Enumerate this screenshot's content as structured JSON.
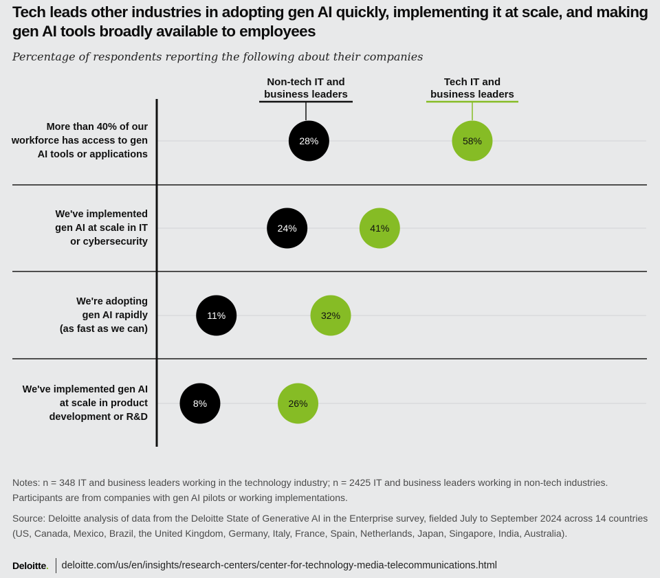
{
  "title": "Tech leads other industries in adopting gen AI quickly, implementing it at scale, and making gen AI tools broadly available to employees",
  "subtitle": "Percentage of respondents reporting the following about their companies",
  "chart_data": {
    "type": "scatter",
    "title": "Tech leads other industries in adopting gen AI quickly, implementing it at scale, and making gen AI tools broadly available to employees",
    "xlabel": "",
    "ylabel": "",
    "unit": "%",
    "series": [
      {
        "name": "Non-tech IT and business leaders",
        "label_lines": [
          "Non-tech IT and",
          "business leaders"
        ],
        "color": "#000000",
        "text_color": "#ffffff",
        "values": [
          28,
          24,
          11,
          8
        ]
      },
      {
        "name": "Tech IT and business leaders",
        "label_lines": [
          "Tech IT and",
          "business leaders"
        ],
        "color": "#86bc25",
        "text_color": "#111111",
        "values": [
          58,
          41,
          32,
          26
        ]
      }
    ],
    "categories": [
      {
        "label": "More than 40% of our workforce has access to gen AI tools or applications",
        "lines": [
          "More than 40% of our",
          "workforce has access to gen",
          "AI tools or applications"
        ]
      },
      {
        "label": "We've implemented gen AI at scale in IT or cybersecurity",
        "lines": [
          "We've implemented",
          "gen AI at scale in IT",
          "or cybersecurity"
        ]
      },
      {
        "label": "We're adopting gen AI rapidly (as fast as we can)",
        "lines": [
          "We're adopting",
          "gen AI rapidly",
          "(as fast as we can)"
        ]
      },
      {
        "label": "We've implemented gen AI at scale in product development or R&D",
        "lines": [
          "We've implemented gen AI",
          "at scale in product",
          "development or R&D"
        ]
      }
    ]
  },
  "notes": {
    "notes_text": "Notes: n = 348 IT and business leaders working in the technology industry; n = 2425 IT and business leaders working in non-tech industries. Participants are from companies with gen AI pilots or working implementations.",
    "source_text": "Source: Deloitte analysis of data from the Deloitte State of Generative AI in the Enterprise survey, fielded July to September 2024 across 14 countries (US, Canada, Mexico, Brazil, the United Kingdom, Germany, Italy, France, Spain, Netherlands, Japan, Singapore, India, Australia)."
  },
  "footer": {
    "logo_text": "Deloitte",
    "logo_dot": ".",
    "url": "deloitte.com/us/en/insights/research-centers/center-for-technology-media-telecommunications.html"
  }
}
